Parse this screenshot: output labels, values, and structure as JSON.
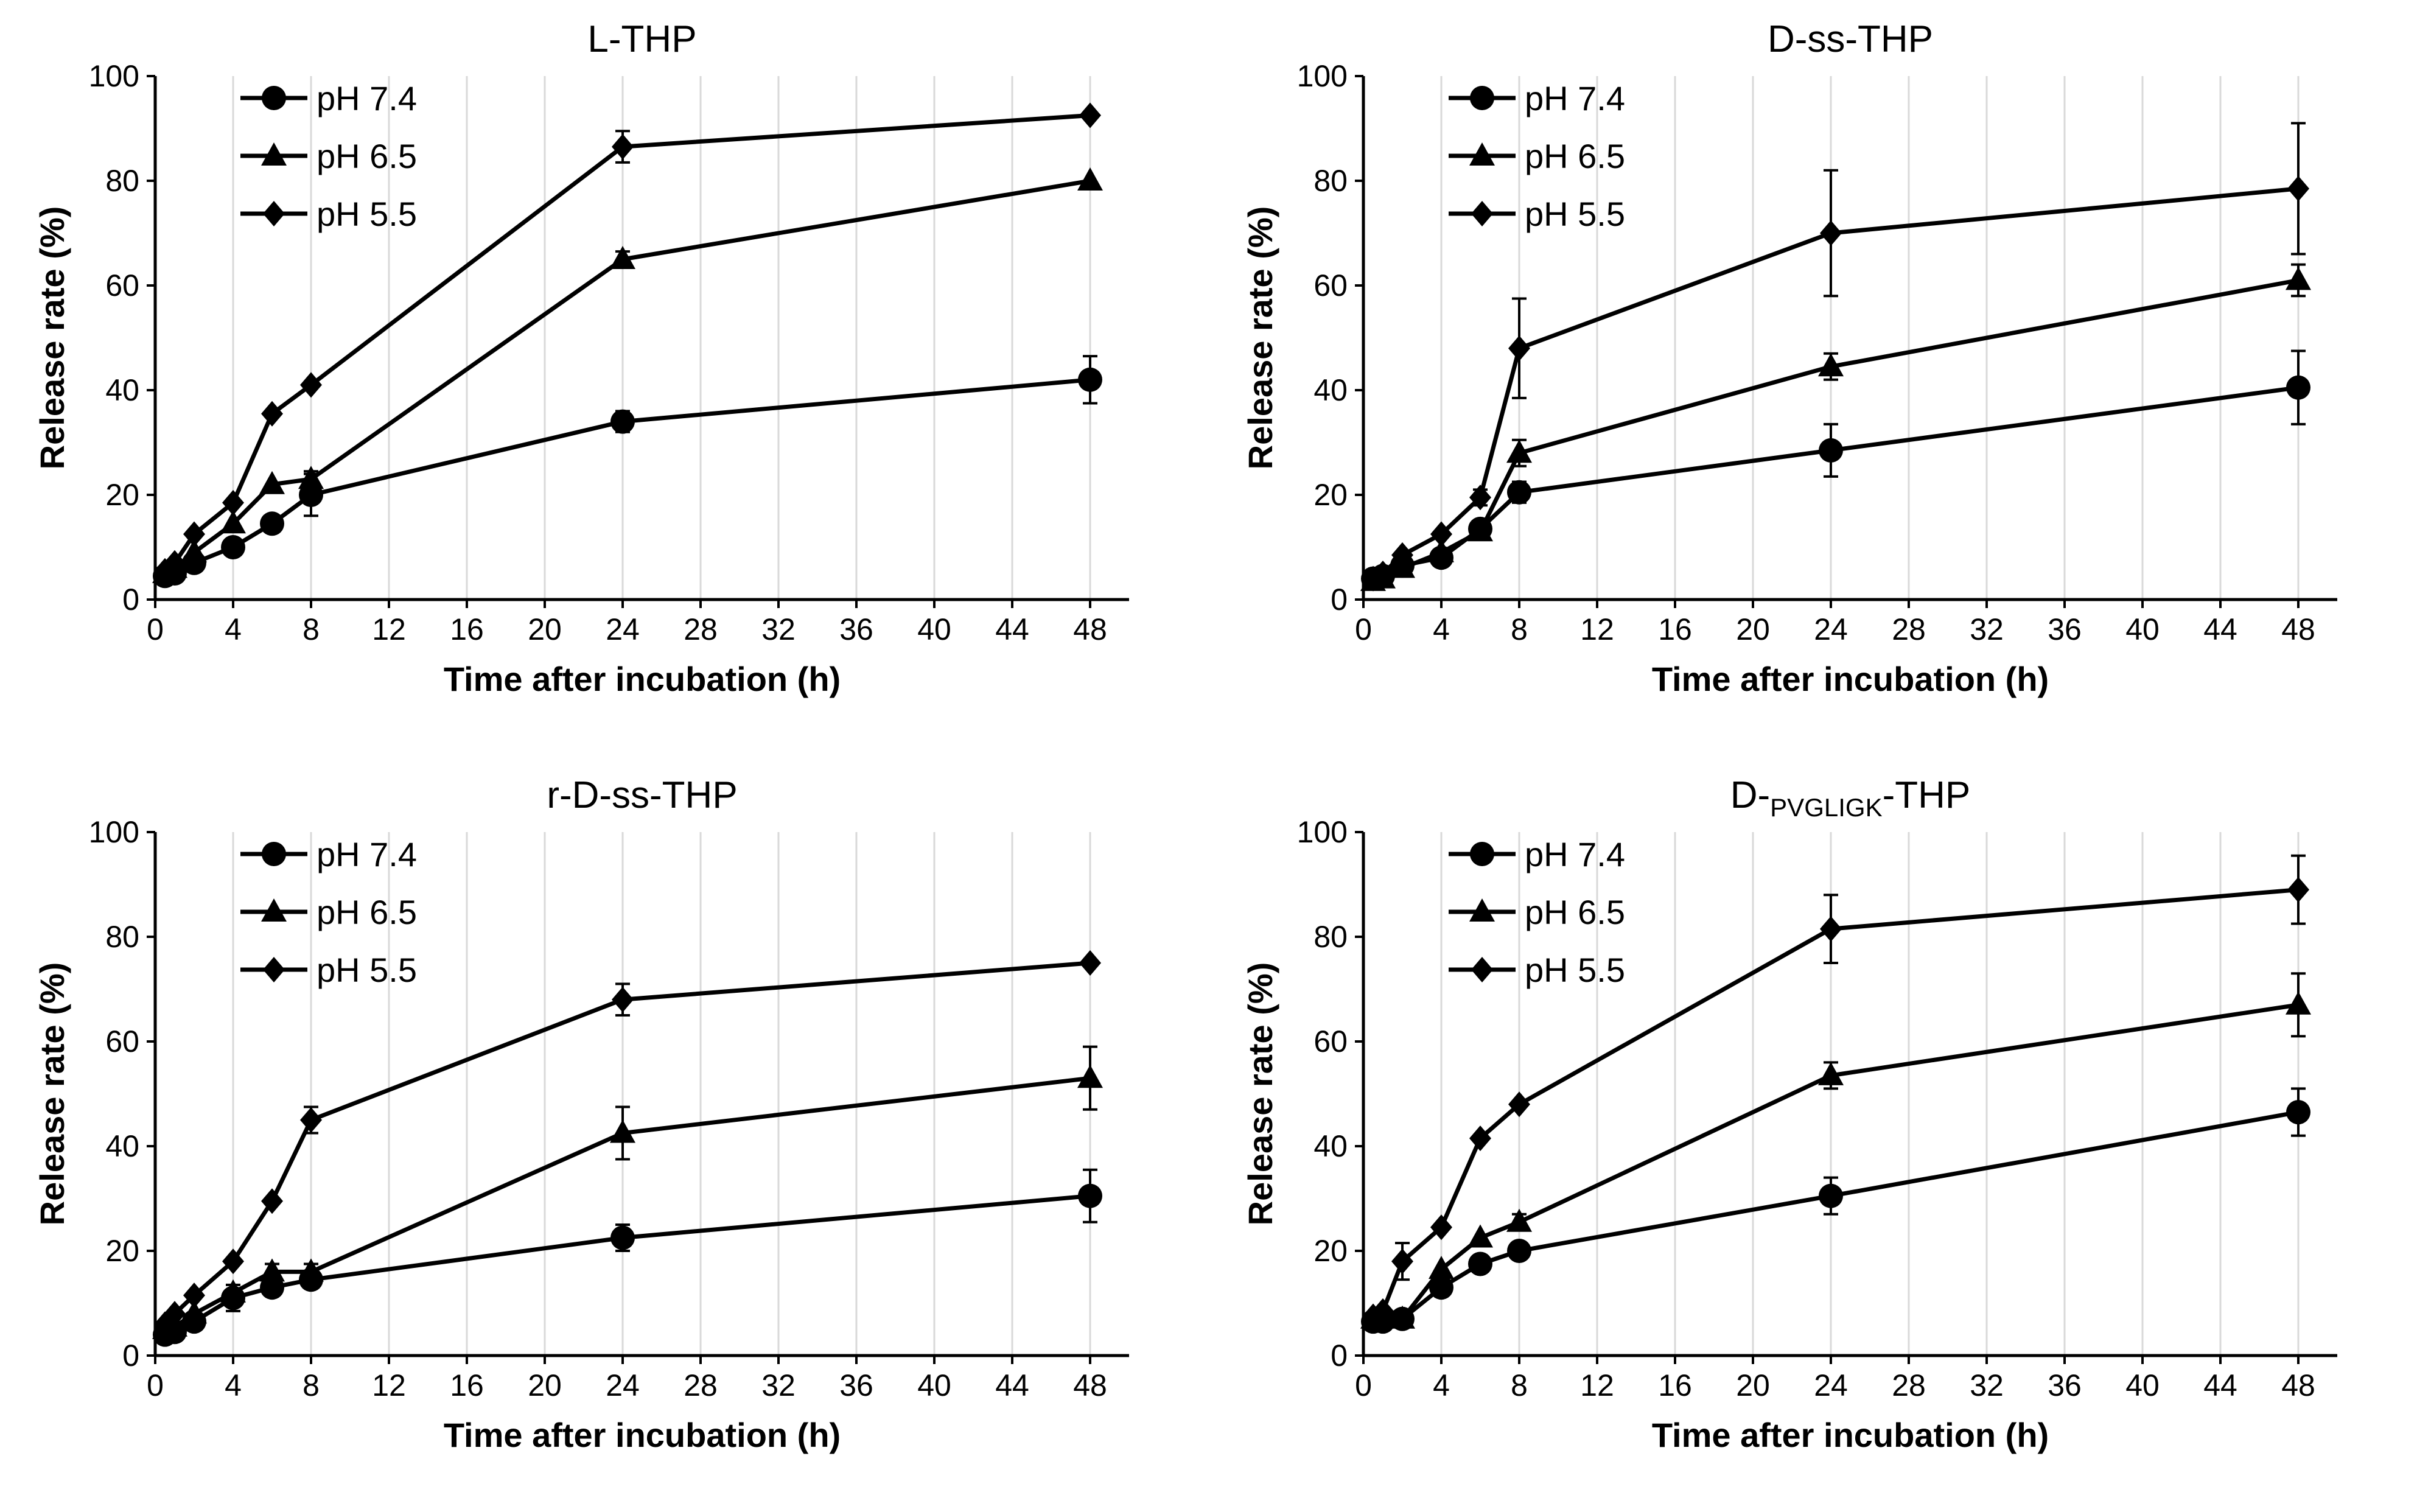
{
  "chart_data": [
    {
      "type": "line",
      "title": "L-THP",
      "title_sub": "",
      "title_suffix": "",
      "xlabel": "Time after incubation (h)",
      "ylabel": "Release rate (%)",
      "xlim": [
        0,
        50
      ],
      "ylim": [
        0,
        100
      ],
      "xticks": [
        0,
        4,
        8,
        12,
        16,
        20,
        24,
        28,
        32,
        36,
        40,
        44,
        48
      ],
      "yticks": [
        0,
        20,
        40,
        60,
        80,
        100
      ],
      "grid": "vertical",
      "legend_position": "top-left",
      "x": [
        0.5,
        1,
        2,
        4,
        6,
        8,
        24,
        48
      ],
      "series": [
        {
          "name": "pH 7.4",
          "marker": "circle",
          "values": [
            4.5,
            5,
            7,
            10,
            14.5,
            20,
            34,
            42
          ],
          "errors": [
            1,
            1,
            1,
            1.5,
            1.5,
            4,
            2,
            4.5
          ]
        },
        {
          "name": "pH 6.5",
          "marker": "triangle",
          "values": [
            5,
            6,
            9,
            14.5,
            22,
            23,
            65,
            80
          ],
          "errors": [
            1,
            1,
            1,
            1,
            1,
            1.5,
            1.5,
            1
          ]
        },
        {
          "name": "pH 5.5",
          "marker": "diamond",
          "values": [
            5.5,
            7,
            12.5,
            18.5,
            35.5,
            41,
            86.5,
            92.5
          ],
          "errors": [
            1,
            1,
            1,
            1,
            1,
            1,
            3,
            1
          ]
        }
      ]
    },
    {
      "type": "line",
      "title": "D-ss-THP",
      "title_sub": "",
      "title_suffix": "",
      "xlabel": "Time after incubation (h)",
      "ylabel": "Release rate (%)",
      "xlim": [
        0,
        50
      ],
      "ylim": [
        0,
        100
      ],
      "xticks": [
        0,
        4,
        8,
        12,
        16,
        20,
        24,
        28,
        32,
        36,
        40,
        44,
        48
      ],
      "yticks": [
        0,
        20,
        40,
        60,
        80,
        100
      ],
      "grid": "vertical",
      "legend_position": "top-left",
      "x": [
        0.5,
        1,
        2,
        4,
        6,
        8,
        24,
        48
      ],
      "series": [
        {
          "name": "pH 7.4",
          "marker": "circle",
          "values": [
            4,
            4.5,
            6.5,
            8,
            13.5,
            20.5,
            28.5,
            40.5
          ],
          "errors": [
            1,
            1,
            1,
            1,
            1.5,
            2,
            5,
            7
          ]
        },
        {
          "name": "pH 6.5",
          "marker": "triangle",
          "values": [
            3.5,
            4,
            6,
            9,
            13,
            28,
            44.5,
            61
          ],
          "errors": [
            1,
            1,
            1,
            1,
            1.5,
            2.5,
            2.5,
            3
          ]
        },
        {
          "name": "pH 5.5",
          "marker": "diamond",
          "values": [
            4,
            5,
            8.5,
            12.5,
            19.5,
            48,
            70,
            78.5
          ],
          "errors": [
            1,
            1,
            1,
            1,
            1.5,
            9.5,
            12,
            12.5
          ]
        }
      ]
    },
    {
      "type": "line",
      "title": "r-D-ss-THP",
      "title_sub": "",
      "title_suffix": "",
      "xlabel": "Time after incubation (h)",
      "ylabel": "Release rate (%)",
      "xlim": [
        0,
        50
      ],
      "ylim": [
        0,
        100
      ],
      "xticks": [
        0,
        4,
        8,
        12,
        16,
        20,
        24,
        28,
        32,
        36,
        40,
        44,
        48
      ],
      "yticks": [
        0,
        20,
        40,
        60,
        80,
        100
      ],
      "grid": "vertical",
      "legend_position": "top-left",
      "x": [
        0.5,
        1,
        2,
        4,
        6,
        8,
        24,
        48
      ],
      "series": [
        {
          "name": "pH 7.4",
          "marker": "circle",
          "values": [
            4,
            4.5,
            6.5,
            11,
            13,
            14.5,
            22.5,
            30.5
          ],
          "errors": [
            1,
            1,
            1,
            2.5,
            1.5,
            1.5,
            2.5,
            5
          ]
        },
        {
          "name": "pH 6.5",
          "marker": "triangle",
          "values": [
            5,
            5.5,
            8,
            12,
            16,
            16,
            42.5,
            53
          ],
          "errors": [
            1,
            1,
            1,
            1,
            1.5,
            1.5,
            5,
            6
          ]
        },
        {
          "name": "pH 5.5",
          "marker": "diamond",
          "values": [
            6,
            8,
            11.5,
            18,
            29.5,
            45,
            68,
            75
          ],
          "errors": [
            1,
            1,
            1,
            1,
            1,
            2.5,
            3,
            1
          ]
        }
      ]
    },
    {
      "type": "line",
      "title": "D-",
      "title_sub": "PVGLIGK",
      "title_suffix": "-THP",
      "xlabel": "Time after incubation (h)",
      "ylabel": "Release rate (%)",
      "xlim": [
        0,
        50
      ],
      "ylim": [
        0,
        100
      ],
      "xticks": [
        0,
        4,
        8,
        12,
        16,
        20,
        24,
        28,
        32,
        36,
        40,
        44,
        48
      ],
      "yticks": [
        0,
        20,
        40,
        60,
        80,
        100
      ],
      "grid": "vertical",
      "legend_position": "top-left",
      "x": [
        0.5,
        1,
        2,
        4,
        6,
        8,
        24,
        48
      ],
      "series": [
        {
          "name": "pH 7.4",
          "marker": "circle",
          "values": [
            6.5,
            6.5,
            7,
            13,
            17.5,
            20,
            30.5,
            46.5
          ],
          "errors": [
            1,
            1,
            1,
            1.5,
            1.5,
            1.5,
            3.5,
            4.5
          ]
        },
        {
          "name": "pH 6.5",
          "marker": "triangle",
          "values": [
            7,
            7.5,
            7,
            16.5,
            22.5,
            25.5,
            53.5,
            67
          ],
          "errors": [
            1,
            1,
            1,
            1,
            1,
            1.5,
            2.5,
            6
          ]
        },
        {
          "name": "pH 5.5",
          "marker": "diamond",
          "values": [
            7.5,
            8.5,
            18,
            24.5,
            41.5,
            48,
            81.5,
            89
          ],
          "errors": [
            1,
            1,
            3.5,
            1,
            1,
            1,
            6.5,
            6.5
          ]
        }
      ]
    }
  ]
}
